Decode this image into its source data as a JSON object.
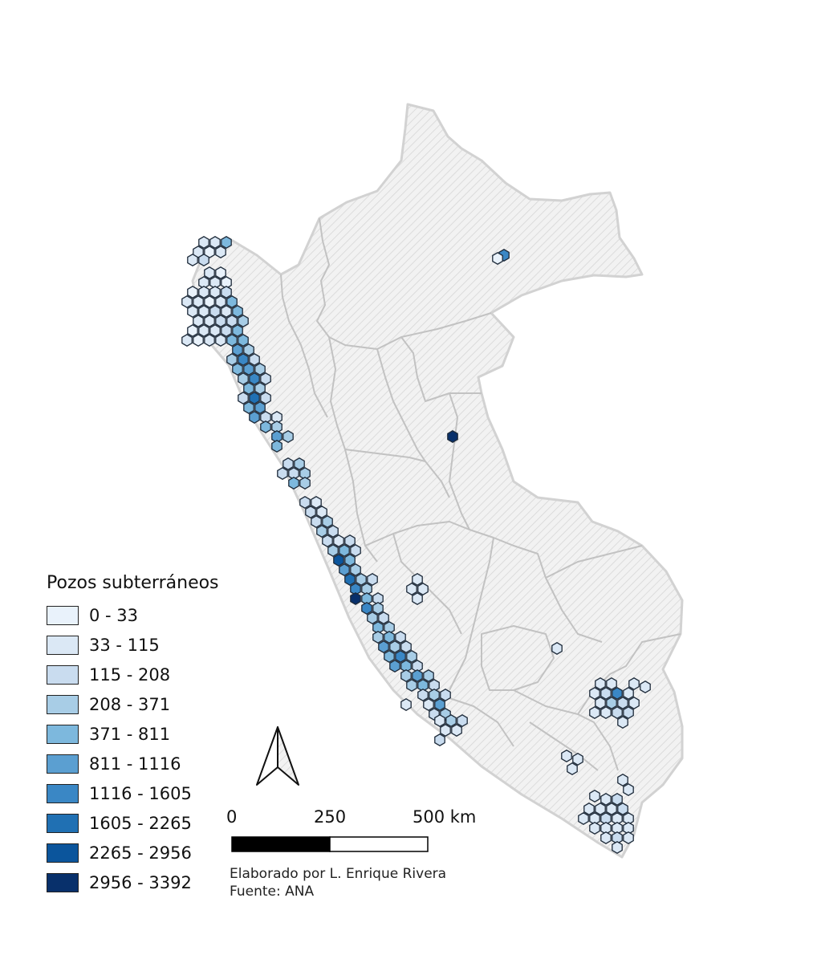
{
  "legend": {
    "title": "Pozos subterráneos",
    "classes": [
      {
        "label": "0 - 33",
        "color": "#e9f2fb"
      },
      {
        "label": "33 - 115",
        "color": "#dbe8f5"
      },
      {
        "label": "115 - 208",
        "color": "#c9dcef"
      },
      {
        "label": "208 - 371",
        "color": "#a8cde6"
      },
      {
        "label": "371 - 811",
        "color": "#7db8dd"
      },
      {
        "label": "811 - 1116",
        "color": "#5b9fd1"
      },
      {
        "label": "1116 - 1605",
        "color": "#3a87c5"
      },
      {
        "label": "1605 - 2265",
        "color": "#2070b3"
      },
      {
        "label": "2265 - 2956",
        "color": "#0b559c"
      },
      {
        "label": "2956 - 3392",
        "color": "#08306b"
      }
    ]
  },
  "scale_bar": {
    "labels": [
      "0",
      "250",
      "500 km"
    ]
  },
  "credits": {
    "author": "Elaborado por L. Enrique Rivera",
    "source": "Fuente: ANA"
  },
  "colors": {
    "country_fill": "#eeeeee",
    "country_border": "#d2d2d2",
    "region_border": "#c2c2c2",
    "hatch": "#d6d6d6",
    "hex_stroke": "#1e2b3a"
  }
}
